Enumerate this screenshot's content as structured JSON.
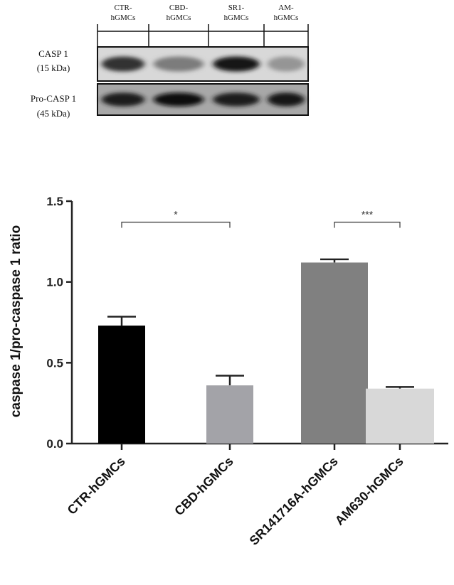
{
  "blot": {
    "lanes": [
      {
        "line1": "CTR-",
        "line2": "hGMCs"
      },
      {
        "line1": "CBD-",
        "line2": "hGMCs"
      },
      {
        "line1": "SR1-",
        "line2": "hGMCs"
      },
      {
        "line1": "AM-",
        "line2": "hGMCs"
      }
    ],
    "rows": [
      {
        "name": "CASP 1",
        "size": "(15 kDa)",
        "band_intensity": [
          0.75,
          0.35,
          0.9,
          0.22
        ]
      },
      {
        "name": "Pro-CASP 1",
        "size": "(45 kDa)",
        "band_intensity": [
          0.85,
          0.95,
          0.85,
          0.9
        ]
      }
    ]
  },
  "chart_data": {
    "type": "bar",
    "categories": [
      "CTR-hGMCs",
      "CBD-hGMCs",
      "SR141716A-hGMCs",
      "AM630-hGMCs"
    ],
    "values": [
      0.73,
      0.36,
      1.12,
      0.34
    ],
    "errors": [
      0.055,
      0.06,
      0.02,
      0.01
    ],
    "bar_colors": [
      "#000000",
      "#a3a3a8",
      "#808080",
      "#d8d8d8"
    ],
    "ylabel": "caspase 1/pro-caspase 1 ratio",
    "xlabel": "",
    "title": "",
    "ylim": [
      0,
      1.5
    ],
    "yticks": [
      0.0,
      0.5,
      1.0,
      1.5
    ],
    "ytick_labels": [
      "0.0",
      "0.5",
      "1.0",
      "1.5"
    ],
    "significance": [
      {
        "from": "CTR-hGMCs",
        "to": "CBD-hGMCs",
        "label": "*"
      },
      {
        "from": "SR141716A-hGMCs",
        "to": "AM630-hGMCs",
        "label": "***"
      }
    ]
  }
}
